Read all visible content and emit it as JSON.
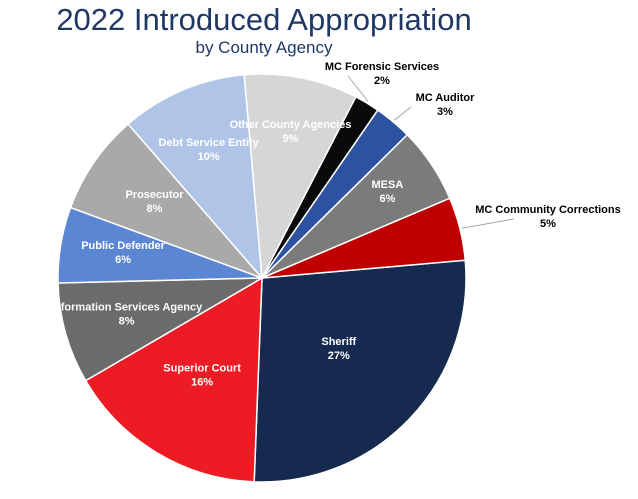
{
  "title": "2022 Introduced Appropriation",
  "subtitle": "by County Agency",
  "chart_data": {
    "type": "pie",
    "title": "2022 Introduced Appropriation",
    "subtitle": "by County Agency",
    "slices": [
      {
        "label": "Sheriff",
        "value": 27,
        "value_label": "27%",
        "color": "#152a4e",
        "label_color": "#ffffff"
      },
      {
        "label": "Superior Court",
        "value": 16,
        "value_label": "16%",
        "color": "#ed1c24",
        "label_color": "#ffffff"
      },
      {
        "label": "Information Services Agency",
        "value": 8,
        "value_label": "8%",
        "color": "#6b6b6b",
        "label_color": "#ffffff"
      },
      {
        "label": "Public Defender",
        "value": 6,
        "value_label": "6%",
        "color": "#5b86d3",
        "label_color": "#ffffff"
      },
      {
        "label": "Prosecutor",
        "value": 8,
        "value_label": "8%",
        "color": "#a9a9a9",
        "label_color": "#ffffff"
      },
      {
        "label": "Debt Service Entity",
        "value": 10,
        "value_label": "10%",
        "color": "#b0c4e8",
        "label_color": "#ffffff"
      },
      {
        "label": "Other County Agencies",
        "value": 9,
        "value_label": "9%",
        "color": "#d6d6d6",
        "label_color": "#ffffff"
      },
      {
        "label": "MC Forensic Services",
        "value": 2,
        "value_label": "2%",
        "color": "#0a0a0a",
        "label_color": "#000000"
      },
      {
        "label": "MC Auditor",
        "value": 3,
        "value_label": "3%",
        "color": "#2d52a1",
        "label_color": "#000000"
      },
      {
        "label": "MESA",
        "value": 6,
        "value_label": "6%",
        "color": "#7b7b7b",
        "label_color": "#ffffff"
      },
      {
        "label": "MC Community Corrections",
        "value": 5,
        "value_label": "5%",
        "color": "#c00000",
        "label_color": "#000000"
      }
    ],
    "legend": "none",
    "data_labels": "category name and percentage"
  }
}
